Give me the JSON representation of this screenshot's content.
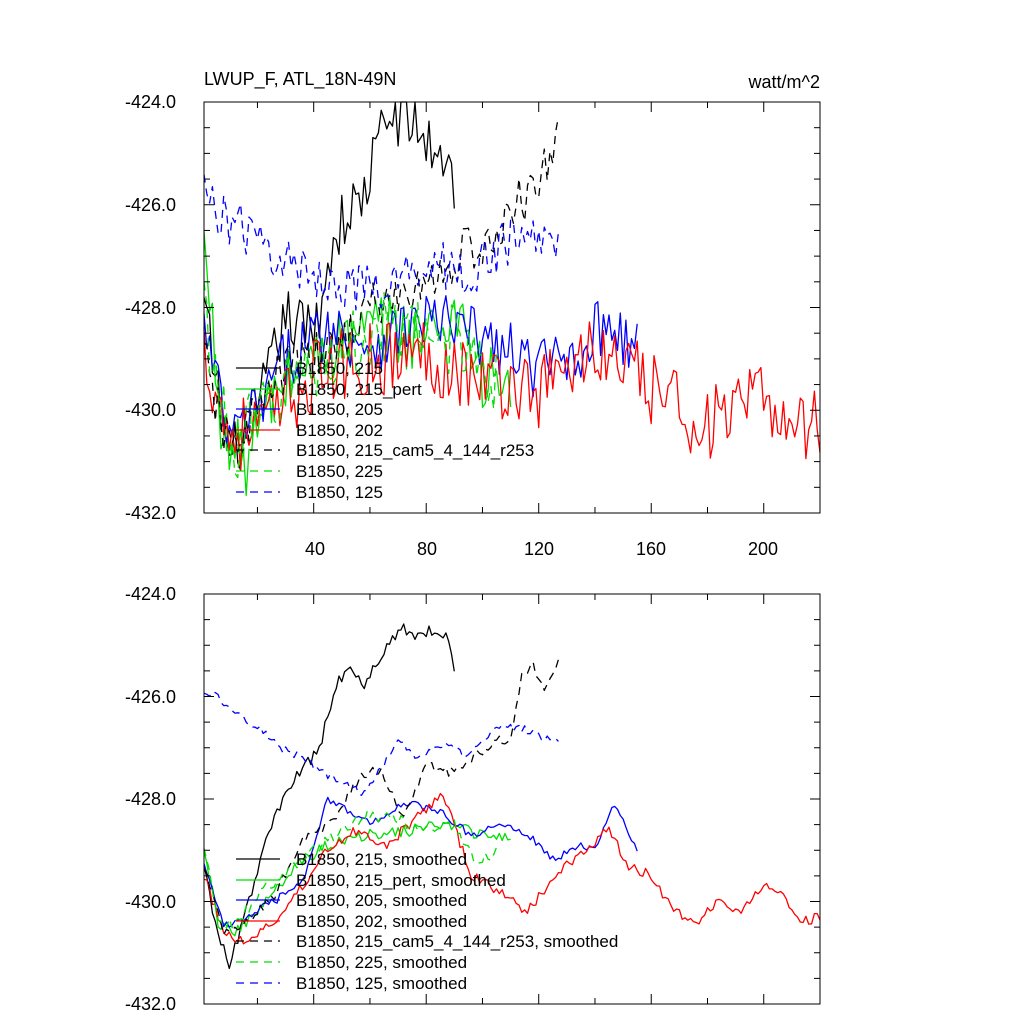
{
  "chart_data": [
    {
      "type": "line",
      "title": "LWUP_F, ATL_18N-49N",
      "units": "watt/m^2",
      "xlim": [
        1,
        220
      ],
      "ylim": [
        -432,
        -424
      ],
      "x_tick_labels": [
        "40",
        "80",
        "120",
        "160",
        "200"
      ],
      "y_tick_labels": [
        "-424.0",
        "-426.0",
        "-428.0",
        "-430.0",
        "-432.0"
      ],
      "legend_position": "lower-left",
      "series": [
        {
          "name": "B1850, 215",
          "label": "B1850, 215",
          "color": "#000000",
          "dash": "solid",
          "start": 1,
          "end": 90,
          "anchors": [
            [
              1,
              -428
            ],
            [
              10,
              -431
            ],
            [
              20,
              -430
            ],
            [
              30,
              -428.2
            ],
            [
              40,
              -428.5
            ],
            [
              48,
              -426.5
            ],
            [
              58,
              -425.8
            ],
            [
              65,
              -424.4
            ],
            [
              72,
              -424.2
            ],
            [
              80,
              -424.8
            ],
            [
              86,
              -425.0
            ],
            [
              90,
              -425.6
            ]
          ],
          "noise": 0.6
        },
        {
          "name": "B1850, 215_pert",
          "label": "B1850, 215_pert",
          "color": "#00dd00",
          "dash": "solid",
          "start": 1,
          "end": 110,
          "anchors": [
            [
              1,
              -426.8
            ],
            [
              8,
              -430.6
            ],
            [
              16,
              -431.0
            ],
            [
              25,
              -429.8
            ],
            [
              35,
              -429.2
            ],
            [
              50,
              -428.7
            ],
            [
              65,
              -428.4
            ],
            [
              80,
              -428.6
            ],
            [
              92,
              -428.0
            ],
            [
              100,
              -429.4
            ],
            [
              110,
              -429.6
            ]
          ],
          "noise": 0.7
        },
        {
          "name": "B1850, 205",
          "label": "B1850, 205",
          "color": "#0000ff",
          "dash": "solid",
          "start": 1,
          "end": 155,
          "anchors": [
            [
              1,
              -428.4
            ],
            [
              10,
              -430.6
            ],
            [
              20,
              -430.0
            ],
            [
              30,
              -429.0
            ],
            [
              45,
              -428.4
            ],
            [
              60,
              -428.7
            ],
            [
              80,
              -428.2
            ],
            [
              100,
              -428.6
            ],
            [
              120,
              -429.2
            ],
            [
              135,
              -428.8
            ],
            [
              145,
              -428.2
            ],
            [
              155,
              -428.9
            ]
          ],
          "noise": 0.6
        },
        {
          "name": "B1850, 202",
          "label": "B1850, 202",
          "color": "#ff0000",
          "dash": "solid",
          "start": 1,
          "end": 220,
          "anchors": [
            [
              1,
              -428.8
            ],
            [
              10,
              -430.5
            ],
            [
              25,
              -430.2
            ],
            [
              40,
              -429.3
            ],
            [
              60,
              -429.0
            ],
            [
              80,
              -428.9
            ],
            [
              100,
              -429.4
            ],
            [
              120,
              -429.6
            ],
            [
              140,
              -428.8
            ],
            [
              160,
              -429.6
            ],
            [
              180,
              -430.3
            ],
            [
              200,
              -429.8
            ],
            [
              210,
              -430.2
            ],
            [
              220,
              -430.3
            ]
          ],
          "noise": 0.75
        },
        {
          "name": "B1850, 215_cam5_4_144_r253",
          "label": "B1850, 215_cam5_4_144_r253",
          "color": "#000000",
          "dash": "8,6",
          "start": 1,
          "end": 127,
          "anchors": [
            [
              1,
              -429.0
            ],
            [
              10,
              -430.8
            ],
            [
              20,
              -430.0
            ],
            [
              30,
              -429.2
            ],
            [
              45,
              -428.9
            ],
            [
              60,
              -428.0
            ],
            [
              72,
              -427.8
            ],
            [
              85,
              -427.4
            ],
            [
              95,
              -426.8
            ],
            [
              105,
              -426.9
            ],
            [
              112,
              -425.8
            ],
            [
              118,
              -425.9
            ],
            [
              127,
              -424.5
            ]
          ],
          "noise": 0.5
        },
        {
          "name": "B1850, 225",
          "label": "B1850, 225",
          "color": "#00dd00",
          "dash": "8,6",
          "start": 1,
          "end": 105,
          "anchors": [
            [
              1,
              -428.0
            ],
            [
              10,
              -430.8
            ],
            [
              20,
              -430.2
            ],
            [
              35,
              -429.2
            ],
            [
              50,
              -428.9
            ],
            [
              65,
              -428.4
            ],
            [
              80,
              -428.6
            ],
            [
              95,
              -428.6
            ],
            [
              105,
              -429.5
            ]
          ],
          "noise": 0.7
        },
        {
          "name": "B1850, 125",
          "label": "B1850, 125",
          "color": "#0000ff",
          "dash": "8,6",
          "start": 1,
          "end": 127,
          "anchors": [
            [
              1,
              -425.8
            ],
            [
              10,
              -426.3
            ],
            [
              22,
              -426.8
            ],
            [
              35,
              -427.3
            ],
            [
              50,
              -427.5
            ],
            [
              65,
              -427.8
            ],
            [
              80,
              -427.0
            ],
            [
              95,
              -427.4
            ],
            [
              105,
              -426.9
            ],
            [
              115,
              -426.6
            ],
            [
              127,
              -426.8
            ]
          ],
          "noise": 0.5
        }
      ]
    },
    {
      "type": "line",
      "title": "",
      "xlim": [
        1,
        220
      ],
      "ylim": [
        -432,
        -424
      ],
      "y_tick_labels": [
        "-424.0",
        "-426.0",
        "-428.0",
        "-430.0",
        "-432.0"
      ],
      "legend_position": "lower-left",
      "series": [
        {
          "name": "B1850, 215, smoothed",
          "label": "B1850, 215, smoothed",
          "color": "#000000",
          "dash": "solid",
          "start": 1,
          "end": 90,
          "anchors": [
            [
              1,
              -429.2
            ],
            [
              5,
              -430.5
            ],
            [
              10,
              -431.2
            ],
            [
              15,
              -430.4
            ],
            [
              20,
              -429.4
            ],
            [
              25,
              -428.5
            ],
            [
              30,
              -427.9
            ],
            [
              35,
              -427.5
            ],
            [
              42,
              -427.0
            ],
            [
              48,
              -425.8
            ],
            [
              52,
              -425.4
            ],
            [
              58,
              -425.8
            ],
            [
              63,
              -425.3
            ],
            [
              67,
              -424.9
            ],
            [
              72,
              -424.7
            ],
            [
              78,
              -424.8
            ],
            [
              83,
              -424.7
            ],
            [
              88,
              -424.9
            ],
            [
              90,
              -425.4
            ]
          ],
          "noise": 0.12
        },
        {
          "name": "B1850, 215_pert, smoothed",
          "label": "B1850, 215_pert, smoothed",
          "color": "#00dd00",
          "dash": "solid",
          "start": 1,
          "end": 110,
          "anchors": [
            [
              1,
              -428.9
            ],
            [
              6,
              -430.4
            ],
            [
              12,
              -430.6
            ],
            [
              20,
              -430.2
            ],
            [
              28,
              -429.7
            ],
            [
              36,
              -429.2
            ],
            [
              45,
              -428.9
            ],
            [
              55,
              -428.7
            ],
            [
              65,
              -428.7
            ],
            [
              75,
              -428.6
            ],
            [
              85,
              -428.5
            ],
            [
              95,
              -428.6
            ],
            [
              103,
              -428.8
            ],
            [
              110,
              -428.7
            ]
          ],
          "noise": 0.12
        },
        {
          "name": "B1850, 205, smoothed",
          "label": "B1850, 205, smoothed",
          "color": "#0000ff",
          "dash": "solid",
          "start": 1,
          "end": 155,
          "anchors": [
            [
              1,
              -429.2
            ],
            [
              8,
              -430.5
            ],
            [
              16,
              -430.3
            ],
            [
              26,
              -430.0
            ],
            [
              36,
              -429.6
            ],
            [
              45,
              -428.0
            ],
            [
              52,
              -428.2
            ],
            [
              60,
              -428.5
            ],
            [
              68,
              -428.2
            ],
            [
              76,
              -428.1
            ],
            [
              86,
              -428.3
            ],
            [
              96,
              -428.7
            ],
            [
              106,
              -428.5
            ],
            [
              116,
              -428.7
            ],
            [
              126,
              -429.2
            ],
            [
              134,
              -428.9
            ],
            [
              140,
              -429.0
            ],
            [
              147,
              -428.1
            ],
            [
              155,
              -429.0
            ]
          ],
          "noise": 0.08
        },
        {
          "name": "B1850, 202, smoothed",
          "label": "B1850, 202, smoothed",
          "color": "#ff0000",
          "dash": "solid",
          "start": 1,
          "end": 220,
          "anchors": [
            [
              1,
              -429.5
            ],
            [
              8,
              -430.6
            ],
            [
              16,
              -430.8
            ],
            [
              26,
              -430.4
            ],
            [
              36,
              -429.7
            ],
            [
              46,
              -428.9
            ],
            [
              56,
              -428.6
            ],
            [
              66,
              -428.9
            ],
            [
              76,
              -428.4
            ],
            [
              86,
              -427.9
            ],
            [
              96,
              -429.5
            ],
            [
              106,
              -429.8
            ],
            [
              116,
              -430.2
            ],
            [
              126,
              -429.5
            ],
            [
              136,
              -429.0
            ],
            [
              145,
              -428.6
            ],
            [
              152,
              -429.3
            ],
            [
              160,
              -429.5
            ],
            [
              168,
              -430.2
            ],
            [
              176,
              -430.4
            ],
            [
              184,
              -430.0
            ],
            [
              192,
              -430.2
            ],
            [
              200,
              -429.7
            ],
            [
              207,
              -429.9
            ],
            [
              213,
              -430.4
            ],
            [
              220,
              -430.3
            ]
          ],
          "noise": 0.1
        },
        {
          "name": "B1850, 215_cam5_4_144_r253, smoothed",
          "label": "B1850, 215_cam5_4_144_r253, smoothed",
          "color": "#000000",
          "dash": "8,6",
          "start": 1,
          "end": 127,
          "anchors": [
            [
              1,
              -429.3
            ],
            [
              8,
              -430.6
            ],
            [
              16,
              -430.4
            ],
            [
              26,
              -429.9
            ],
            [
              36,
              -428.8
            ],
            [
              46,
              -428.5
            ],
            [
              56,
              -427.6
            ],
            [
              64,
              -427.4
            ],
            [
              72,
              -428.4
            ],
            [
              80,
              -427.3
            ],
            [
              88,
              -427.5
            ],
            [
              96,
              -427.2
            ],
            [
              104,
              -426.9
            ],
            [
              110,
              -426.8
            ],
            [
              114,
              -425.6
            ],
            [
              118,
              -425.4
            ],
            [
              122,
              -425.8
            ],
            [
              127,
              -425.3
            ]
          ],
          "noise": 0.1
        },
        {
          "name": "B1850, 225, smoothed",
          "label": "B1850, 225, smoothed",
          "color": "#00dd00",
          "dash": "8,6",
          "start": 1,
          "end": 105,
          "anchors": [
            [
              1,
              -428.9
            ],
            [
              6,
              -430.3
            ],
            [
              12,
              -430.5
            ],
            [
              20,
              -429.9
            ],
            [
              30,
              -429.4
            ],
            [
              40,
              -429.0
            ],
            [
              50,
              -428.6
            ],
            [
              60,
              -428.3
            ],
            [
              70,
              -428.4
            ],
            [
              80,
              -428.6
            ],
            [
              90,
              -428.5
            ],
            [
              98,
              -429.3
            ],
            [
              105,
              -429.0
            ]
          ],
          "noise": 0.12
        },
        {
          "name": "B1850, 125, smoothed",
          "label": "B1850, 125, smoothed",
          "color": "#0000ff",
          "dash": "8,6",
          "start": 1,
          "end": 127,
          "anchors": [
            [
              1,
              -425.9
            ],
            [
              6,
              -426.0
            ],
            [
              12,
              -426.3
            ],
            [
              20,
              -426.6
            ],
            [
              28,
              -427.0
            ],
            [
              36,
              -427.2
            ],
            [
              44,
              -427.5
            ],
            [
              52,
              -427.7
            ],
            [
              58,
              -427.9
            ],
            [
              62,
              -427.6
            ],
            [
              66,
              -427.2
            ],
            [
              70,
              -426.8
            ],
            [
              76,
              -427.2
            ],
            [
              82,
              -427.0
            ],
            [
              88,
              -426.9
            ],
            [
              94,
              -427.2
            ],
            [
              100,
              -426.9
            ],
            [
              106,
              -426.6
            ],
            [
              112,
              -426.6
            ],
            [
              118,
              -426.7
            ],
            [
              127,
              -426.9
            ]
          ],
          "noise": 0.08
        }
      ]
    }
  ]
}
